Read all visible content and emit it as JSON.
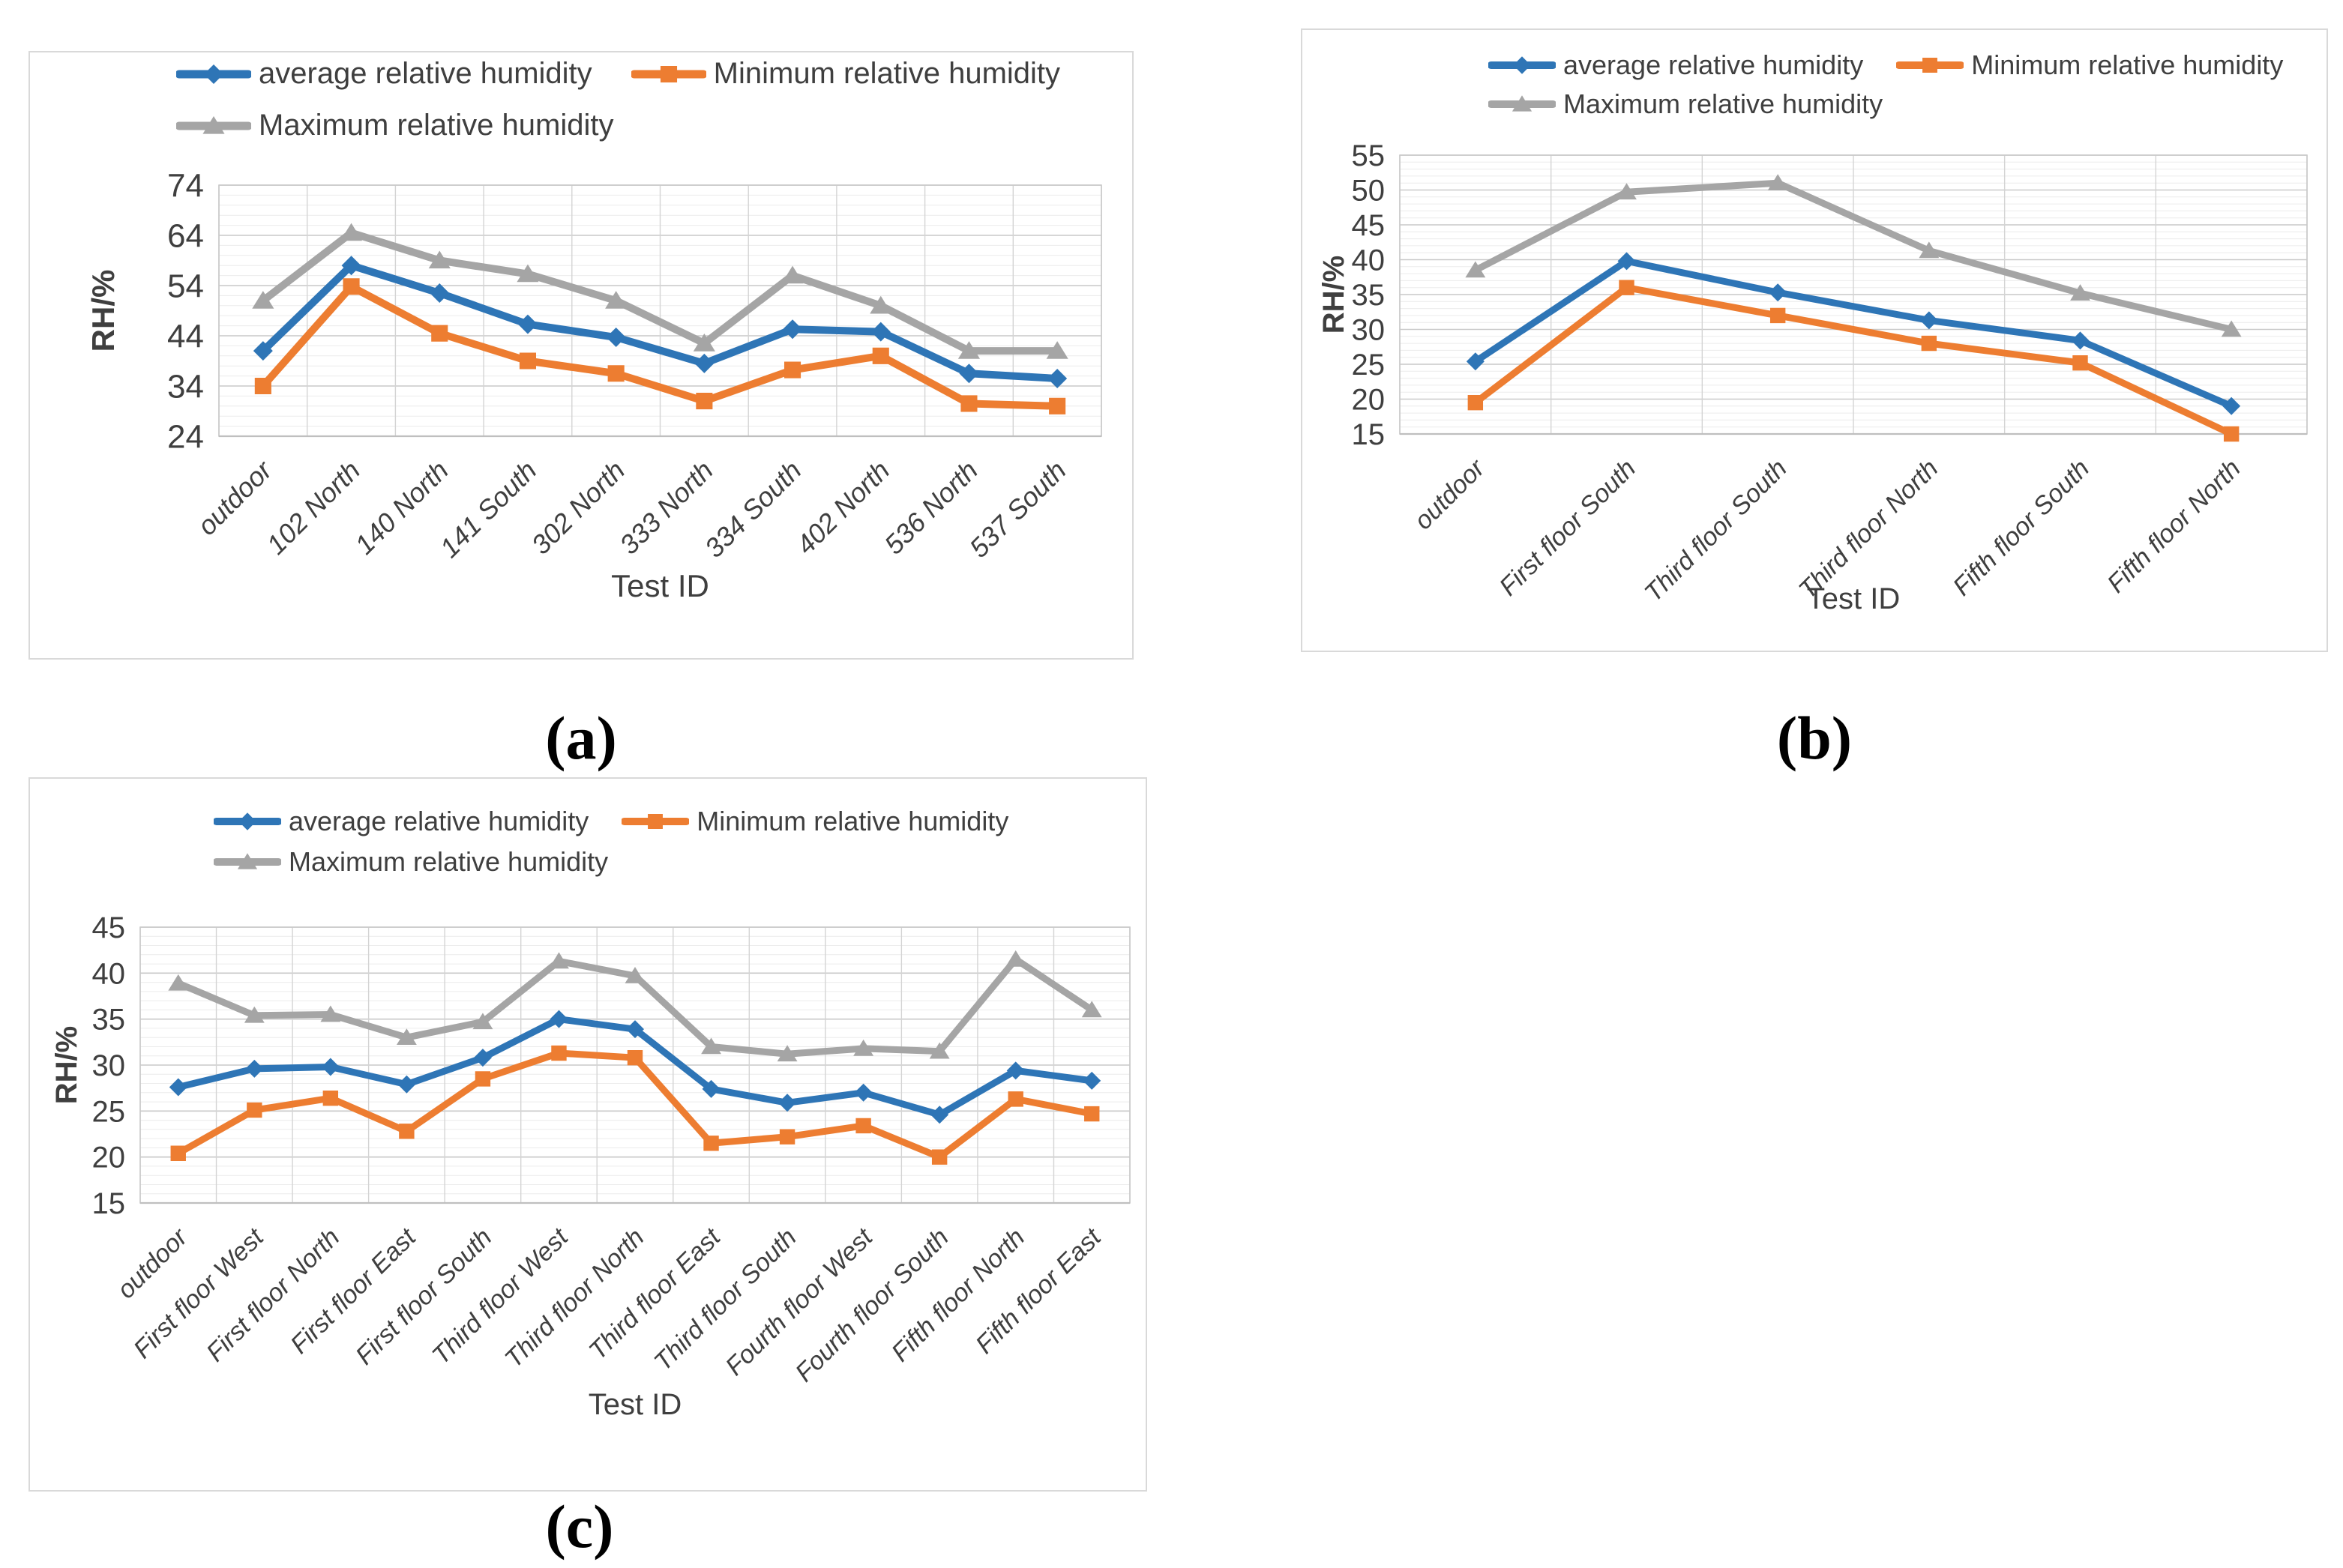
{
  "colors": {
    "average": "#2E75B6",
    "minimum": "#ED7D31",
    "maximum": "#A5A5A5",
    "grid_major": "#C9C9C9",
    "grid_minor": "#ECECEC",
    "grid_vertical": "#D4D4D4",
    "axis_line": "#BFBFBF",
    "text": "#3F3F3F",
    "panel_border": "#D9D9D9"
  },
  "chart_data": [
    {
      "type": "line",
      "caption": "(a)",
      "xlabel": "Test ID",
      "ylabel": "RH/%",
      "ylim": [
        24,
        74
      ],
      "ytick_step": 10,
      "yticks": [
        "74",
        "64",
        "54",
        "44",
        "34",
        "24"
      ],
      "grid": true,
      "legend_position": "top",
      "categories": [
        "outdoor",
        "102 North",
        "140 North",
        "141 South",
        "302 North",
        "333 North",
        "334 South",
        "402 North",
        "536 North",
        "537 South"
      ],
      "series": [
        {
          "name": "average relative humidity",
          "color_key": "average",
          "marker": "diamond",
          "values": [
            41.0,
            58.0,
            52.5,
            46.3,
            43.7,
            38.5,
            45.3,
            44.8,
            36.5,
            35.5
          ]
        },
        {
          "name": "Minimum relative humidity",
          "color_key": "minimum",
          "marker": "square",
          "values": [
            34.0,
            53.8,
            44.5,
            39.0,
            36.5,
            31.0,
            37.2,
            40.0,
            30.5,
            30.0
          ]
        },
        {
          "name": "Maximum relative humidity",
          "color_key": "maximum",
          "marker": "triangle",
          "values": [
            51.0,
            64.5,
            59.0,
            56.3,
            51.0,
            42.5,
            56.0,
            50.0,
            41.0,
            41.0
          ]
        }
      ]
    },
    {
      "type": "line",
      "caption": "(b)",
      "xlabel": "Test ID",
      "ylabel": "RH/%",
      "ylim": [
        15,
        55
      ],
      "ytick_step": 5,
      "yticks": [
        "55",
        "50",
        "45",
        "40",
        "35",
        "30",
        "25",
        "20",
        "15"
      ],
      "grid": true,
      "legend_position": "top",
      "categories": [
        "outdoor",
        "First floor South",
        "Third floor South",
        "Third floor North",
        "Fifth floor South",
        "Fifth floor North"
      ],
      "series": [
        {
          "name": "average relative humidity",
          "color_key": "average",
          "marker": "diamond",
          "values": [
            25.4,
            39.8,
            35.3,
            31.3,
            28.4,
            19.0
          ]
        },
        {
          "name": "Minimum relative humidity",
          "color_key": "minimum",
          "marker": "square",
          "values": [
            19.5,
            36.0,
            32.0,
            28.0,
            25.2,
            15.0
          ]
        },
        {
          "name": "Maximum relative humidity",
          "color_key": "maximum",
          "marker": "triangle",
          "values": [
            38.5,
            49.7,
            51.0,
            41.3,
            35.2,
            30.0
          ]
        }
      ]
    },
    {
      "type": "line",
      "caption": "(c)",
      "xlabel": "Test ID",
      "ylabel": "RH/%",
      "ylim": [
        15,
        45
      ],
      "ytick_step": 5,
      "yticks": [
        "45",
        "40",
        "35",
        "30",
        "25",
        "20",
        "15"
      ],
      "grid": true,
      "legend_position": "top",
      "categories": [
        "outdoor",
        "First floor West",
        "First floor North",
        "First floor East",
        "First floor South",
        "Third floor West",
        "Third floor North",
        "Third floor East",
        "Third floor South",
        "Fourth floor West",
        "Fourth floor South",
        "Fifth floor North",
        "Fifth floor East"
      ],
      "series": [
        {
          "name": "average relative humidity",
          "color_key": "average",
          "marker": "diamond",
          "values": [
            27.6,
            29.6,
            29.8,
            27.9,
            30.8,
            35.0,
            33.9,
            27.4,
            25.9,
            27.0,
            24.6,
            29.4,
            28.3
          ]
        },
        {
          "name": "Minimum relative humidity",
          "color_key": "minimum",
          "marker": "square",
          "values": [
            20.4,
            25.1,
            26.4,
            22.8,
            28.5,
            31.3,
            30.8,
            21.5,
            22.2,
            23.4,
            20.0,
            26.3,
            24.7
          ]
        },
        {
          "name": "Maximum relative humidity",
          "color_key": "maximum",
          "marker": "triangle",
          "values": [
            38.9,
            35.4,
            35.5,
            33.0,
            34.7,
            41.3,
            39.7,
            32.0,
            31.2,
            31.8,
            31.5,
            41.5,
            36.0
          ]
        }
      ]
    }
  ]
}
